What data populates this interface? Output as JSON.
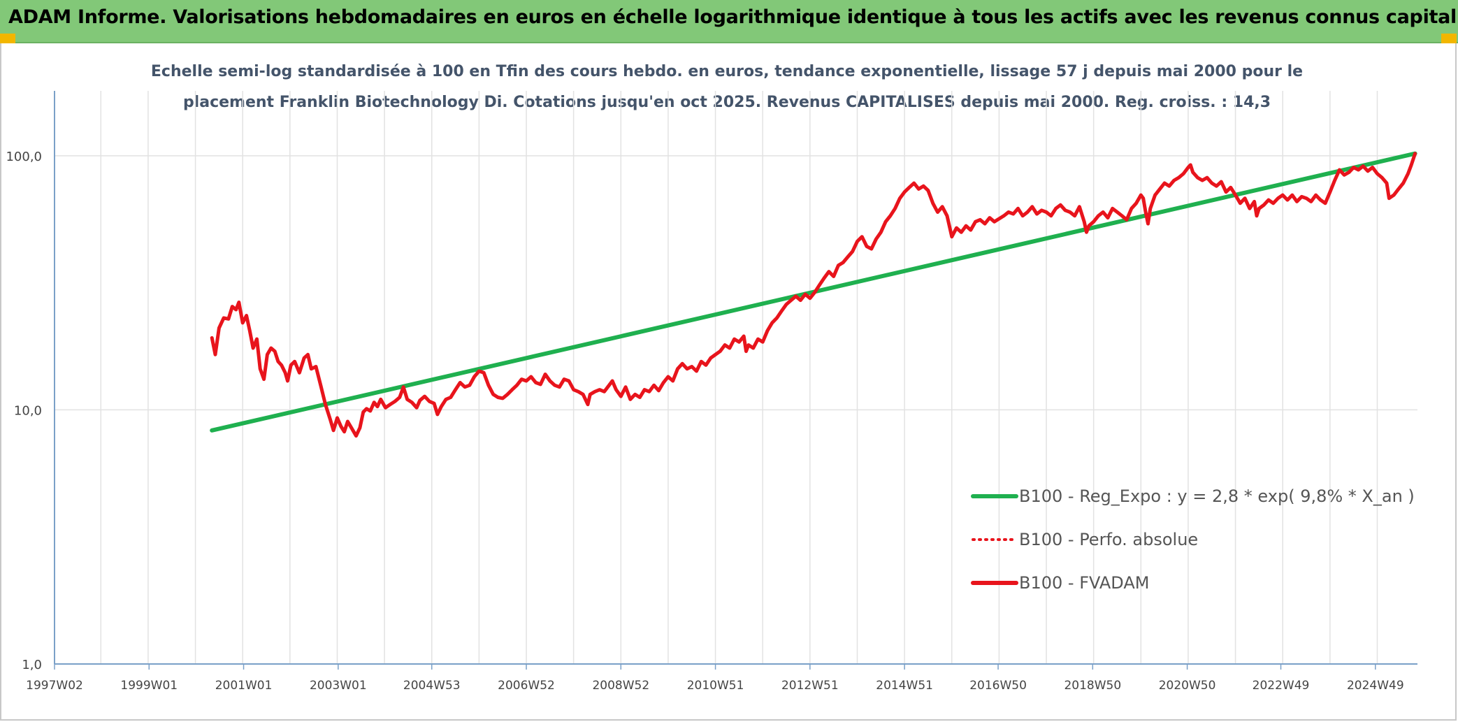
{
  "banner": {
    "title": "ADAM Informe. Valorisations hebdomadaires en euros en échelle logarithmique identique à tous les actifs avec les revenus connus capitalisés"
  },
  "colors": {
    "banner": "#82c878",
    "corner": "#f2b600",
    "green_line": "#1fb04f",
    "red_line": "#e8141c",
    "subtitle": "#44546a",
    "axis": "#7aa0c8",
    "grid": "#e2e2e2"
  },
  "chart_data": {
    "type": "line",
    "title_lines": [
      "Echelle semi-log standardisée à 100 en Tfin des cours hebdo. en euros, tendance exponentielle, lissage 57 j depuis mai 2000 pour le",
      "placement Franklin Biotechnology Di. Cotations jusqu'en oct 2025. Revenus CAPITALISES depuis mai 2000. Reg. croiss. : 14,3"
    ],
    "y_scale": "log",
    "ylim": [
      1,
      180
    ],
    "y_ticks": [
      {
        "value": 1,
        "label": "1,0"
      },
      {
        "value": 10,
        "label": "10,0"
      },
      {
        "value": 100,
        "label": "100,0"
      }
    ],
    "xlim": [
      1997.02,
      2025.85
    ],
    "x_ticks": [
      {
        "value": 1997.02,
        "label": "1997W02"
      },
      {
        "value": 1999.02,
        "label": "1999W01"
      },
      {
        "value": 2001.02,
        "label": "2001W01"
      },
      {
        "value": 2003.02,
        "label": "2003W01"
      },
      {
        "value": 2005.0,
        "label": "2004W53"
      },
      {
        "value": 2007.0,
        "label": "2006W52"
      },
      {
        "value": 2009.0,
        "label": "2008W52"
      },
      {
        "value": 2011.0,
        "label": "2010W51"
      },
      {
        "value": 2013.0,
        "label": "2012W51"
      },
      {
        "value": 2015.0,
        "label": "2014W51"
      },
      {
        "value": 2016.98,
        "label": "2016W50"
      },
      {
        "value": 2018.98,
        "label": "2018W50"
      },
      {
        "value": 2020.98,
        "label": "2020W50"
      },
      {
        "value": 2022.96,
        "label": "2022W49"
      },
      {
        "value": 2024.96,
        "label": "2024W49"
      }
    ],
    "x_grid_step_years": 1,
    "grid": true,
    "legend_position": "bottom-right",
    "series": [
      {
        "name": "B100 - Reg_Expo : y = 2,8 * exp( 9,8% *  X_an )",
        "style": "solid",
        "color": "#1fb04f",
        "points": [
          [
            2000.35,
            8.3
          ],
          [
            2025.8,
            102
          ]
        ]
      },
      {
        "name": "B100 - Perfo. absolue",
        "style": "dotted",
        "color": "#e8141c",
        "points": []
      },
      {
        "name": "B100 - FVADAM",
        "style": "solid",
        "color": "#e8141c",
        "points": [
          [
            2000.35,
            19.2
          ],
          [
            2000.42,
            16.5
          ],
          [
            2000.5,
            21.0
          ],
          [
            2000.6,
            23.0
          ],
          [
            2000.7,
            22.8
          ],
          [
            2000.78,
            25.5
          ],
          [
            2000.86,
            24.8
          ],
          [
            2000.92,
            26.5
          ],
          [
            2001.0,
            22.0
          ],
          [
            2001.08,
            23.5
          ],
          [
            2001.15,
            20.5
          ],
          [
            2001.22,
            17.5
          ],
          [
            2001.3,
            19.0
          ],
          [
            2001.37,
            14.5
          ],
          [
            2001.45,
            13.2
          ],
          [
            2001.52,
            16.5
          ],
          [
            2001.6,
            17.5
          ],
          [
            2001.68,
            17.0
          ],
          [
            2001.75,
            15.5
          ],
          [
            2001.82,
            15.0
          ],
          [
            2001.9,
            14.0
          ],
          [
            2001.95,
            13.0
          ],
          [
            2002.02,
            15.0
          ],
          [
            2002.1,
            15.5
          ],
          [
            2002.2,
            14.0
          ],
          [
            2002.3,
            16.0
          ],
          [
            2002.38,
            16.5
          ],
          [
            2002.45,
            14.5
          ],
          [
            2002.55,
            14.8
          ],
          [
            2002.65,
            12.5
          ],
          [
            2002.75,
            10.5
          ],
          [
            2002.85,
            9.2
          ],
          [
            2002.92,
            8.3
          ],
          [
            2003.0,
            9.3
          ],
          [
            2003.08,
            8.6
          ],
          [
            2003.15,
            8.2
          ],
          [
            2003.22,
            9.0
          ],
          [
            2003.3,
            8.5
          ],
          [
            2003.4,
            7.9
          ],
          [
            2003.48,
            8.5
          ],
          [
            2003.55,
            9.8
          ],
          [
            2003.62,
            10.1
          ],
          [
            2003.7,
            9.9
          ],
          [
            2003.78,
            10.7
          ],
          [
            2003.85,
            10.3
          ],
          [
            2003.92,
            11.0
          ],
          [
            2004.02,
            10.2
          ],
          [
            2004.12,
            10.5
          ],
          [
            2004.22,
            10.8
          ],
          [
            2004.32,
            11.2
          ],
          [
            2004.4,
            12.3
          ],
          [
            2004.48,
            11.0
          ],
          [
            2004.58,
            10.7
          ],
          [
            2004.68,
            10.2
          ],
          [
            2004.75,
            10.9
          ],
          [
            2004.85,
            11.3
          ],
          [
            2004.95,
            10.8
          ],
          [
            2005.05,
            10.6
          ],
          [
            2005.12,
            9.6
          ],
          [
            2005.2,
            10.3
          ],
          [
            2005.3,
            11.0
          ],
          [
            2005.4,
            11.2
          ],
          [
            2005.5,
            12.0
          ],
          [
            2005.6,
            12.8
          ],
          [
            2005.7,
            12.3
          ],
          [
            2005.8,
            12.5
          ],
          [
            2005.9,
            13.5
          ],
          [
            2006.0,
            14.2
          ],
          [
            2006.1,
            14.0
          ],
          [
            2006.2,
            12.5
          ],
          [
            2006.3,
            11.5
          ],
          [
            2006.4,
            11.2
          ],
          [
            2006.5,
            11.1
          ],
          [
            2006.6,
            11.5
          ],
          [
            2006.7,
            12.0
          ],
          [
            2006.8,
            12.5
          ],
          [
            2006.9,
            13.2
          ],
          [
            2007.0,
            13.0
          ],
          [
            2007.1,
            13.5
          ],
          [
            2007.2,
            12.8
          ],
          [
            2007.3,
            12.6
          ],
          [
            2007.4,
            13.8
          ],
          [
            2007.5,
            13.0
          ],
          [
            2007.6,
            12.5
          ],
          [
            2007.7,
            12.3
          ],
          [
            2007.8,
            13.2
          ],
          [
            2007.9,
            13.0
          ],
          [
            2008.0,
            12.0
          ],
          [
            2008.1,
            11.8
          ],
          [
            2008.2,
            11.5
          ],
          [
            2008.3,
            10.5
          ],
          [
            2008.35,
            11.5
          ],
          [
            2008.45,
            11.8
          ],
          [
            2008.55,
            12.0
          ],
          [
            2008.65,
            11.8
          ],
          [
            2008.75,
            12.5
          ],
          [
            2008.82,
            13.0
          ],
          [
            2008.9,
            12.0
          ],
          [
            2009.0,
            11.3
          ],
          [
            2009.1,
            12.3
          ],
          [
            2009.2,
            11.0
          ],
          [
            2009.3,
            11.5
          ],
          [
            2009.4,
            11.2
          ],
          [
            2009.5,
            12.0
          ],
          [
            2009.6,
            11.8
          ],
          [
            2009.7,
            12.5
          ],
          [
            2009.8,
            11.9
          ],
          [
            2009.9,
            12.8
          ],
          [
            2010.0,
            13.5
          ],
          [
            2010.1,
            13.0
          ],
          [
            2010.2,
            14.5
          ],
          [
            2010.3,
            15.2
          ],
          [
            2010.4,
            14.5
          ],
          [
            2010.5,
            14.8
          ],
          [
            2010.6,
            14.2
          ],
          [
            2010.7,
            15.5
          ],
          [
            2010.8,
            15.0
          ],
          [
            2010.9,
            16.0
          ],
          [
            2011.0,
            16.5
          ],
          [
            2011.1,
            17.0
          ],
          [
            2011.2,
            18.0
          ],
          [
            2011.3,
            17.5
          ],
          [
            2011.4,
            19.0
          ],
          [
            2011.5,
            18.5
          ],
          [
            2011.6,
            19.5
          ],
          [
            2011.65,
            17.0
          ],
          [
            2011.7,
            18.0
          ],
          [
            2011.8,
            17.5
          ],
          [
            2011.9,
            19.0
          ],
          [
            2012.0,
            18.5
          ],
          [
            2012.1,
            20.5
          ],
          [
            2012.2,
            22.0
          ],
          [
            2012.3,
            23.0
          ],
          [
            2012.4,
            24.5
          ],
          [
            2012.5,
            26.0
          ],
          [
            2012.6,
            27.0
          ],
          [
            2012.7,
            28.0
          ],
          [
            2012.8,
            27.0
          ],
          [
            2012.9,
            28.5
          ],
          [
            2013.0,
            27.5
          ],
          [
            2013.1,
            29.0
          ],
          [
            2013.2,
            31.0
          ],
          [
            2013.3,
            33.0
          ],
          [
            2013.4,
            35.0
          ],
          [
            2013.5,
            33.5
          ],
          [
            2013.6,
            37.0
          ],
          [
            2013.7,
            38.0
          ],
          [
            2013.8,
            40.0
          ],
          [
            2013.9,
            42.0
          ],
          [
            2014.0,
            46.0
          ],
          [
            2014.1,
            48.0
          ],
          [
            2014.2,
            44.0
          ],
          [
            2014.3,
            43.0
          ],
          [
            2014.4,
            47.0
          ],
          [
            2014.5,
            50.0
          ],
          [
            2014.6,
            55.0
          ],
          [
            2014.7,
            58.0
          ],
          [
            2014.8,
            62.0
          ],
          [
            2014.9,
            68.0
          ],
          [
            2015.0,
            72.0
          ],
          [
            2015.1,
            75.0
          ],
          [
            2015.2,
            78.0
          ],
          [
            2015.3,
            74.0
          ],
          [
            2015.4,
            76.0
          ],
          [
            2015.5,
            73.0
          ],
          [
            2015.6,
            65.0
          ],
          [
            2015.7,
            60.0
          ],
          [
            2015.8,
            63.0
          ],
          [
            2015.9,
            58.0
          ],
          [
            2016.0,
            48.0
          ],
          [
            2016.1,
            52.0
          ],
          [
            2016.2,
            50.0
          ],
          [
            2016.3,
            53.0
          ],
          [
            2016.4,
            51.0
          ],
          [
            2016.5,
            55.0
          ],
          [
            2016.6,
            56.0
          ],
          [
            2016.7,
            54.0
          ],
          [
            2016.8,
            57.0
          ],
          [
            2016.9,
            55.0
          ],
          [
            2017.0,
            56.5
          ],
          [
            2017.1,
            58.0
          ],
          [
            2017.2,
            60.0
          ],
          [
            2017.3,
            59.0
          ],
          [
            2017.4,
            62.0
          ],
          [
            2017.5,
            58.0
          ],
          [
            2017.6,
            60.0
          ],
          [
            2017.7,
            63.0
          ],
          [
            2017.8,
            59.0
          ],
          [
            2017.9,
            61.0
          ],
          [
            2018.0,
            60.0
          ],
          [
            2018.1,
            58.0
          ],
          [
            2018.2,
            62.0
          ],
          [
            2018.3,
            64.0
          ],
          [
            2018.4,
            61.0
          ],
          [
            2018.5,
            60.0
          ],
          [
            2018.6,
            58.0
          ],
          [
            2018.7,
            63.0
          ],
          [
            2018.8,
            55.0
          ],
          [
            2018.85,
            50.0
          ],
          [
            2018.9,
            53.0
          ],
          [
            2019.0,
            55.0
          ],
          [
            2019.1,
            58.0
          ],
          [
            2019.2,
            60.0
          ],
          [
            2019.3,
            57.0
          ],
          [
            2019.4,
            62.0
          ],
          [
            2019.5,
            60.0
          ],
          [
            2019.6,
            58.0
          ],
          [
            2019.7,
            56.0
          ],
          [
            2019.8,
            62.0
          ],
          [
            2019.9,
            65.0
          ],
          [
            2020.0,
            70.0
          ],
          [
            2020.05,
            68.0
          ],
          [
            2020.1,
            60.0
          ],
          [
            2020.15,
            54.0
          ],
          [
            2020.2,
            62.0
          ],
          [
            2020.3,
            70.0
          ],
          [
            2020.4,
            74.0
          ],
          [
            2020.5,
            78.0
          ],
          [
            2020.6,
            76.0
          ],
          [
            2020.7,
            80.0
          ],
          [
            2020.8,
            82.0
          ],
          [
            2020.9,
            85.0
          ],
          [
            2021.0,
            90.0
          ],
          [
            2021.05,
            92.0
          ],
          [
            2021.1,
            86.0
          ],
          [
            2021.2,
            82.0
          ],
          [
            2021.3,
            80.0
          ],
          [
            2021.4,
            82.0
          ],
          [
            2021.5,
            78.0
          ],
          [
            2021.6,
            76.0
          ],
          [
            2021.7,
            79.0
          ],
          [
            2021.8,
            72.0
          ],
          [
            2021.9,
            75.0
          ],
          [
            2022.0,
            70.0
          ],
          [
            2022.1,
            65.0
          ],
          [
            2022.2,
            68.0
          ],
          [
            2022.3,
            62.0
          ],
          [
            2022.4,
            66.0
          ],
          [
            2022.45,
            58.0
          ],
          [
            2022.5,
            62.0
          ],
          [
            2022.6,
            64.0
          ],
          [
            2022.7,
            67.0
          ],
          [
            2022.8,
            65.0
          ],
          [
            2022.9,
            68.0
          ],
          [
            2023.0,
            70.0
          ],
          [
            2023.1,
            67.0
          ],
          [
            2023.2,
            70.0
          ],
          [
            2023.3,
            66.0
          ],
          [
            2023.4,
            69.0
          ],
          [
            2023.5,
            68.0
          ],
          [
            2023.6,
            66.0
          ],
          [
            2023.7,
            70.0
          ],
          [
            2023.8,
            67.0
          ],
          [
            2023.9,
            65.0
          ],
          [
            2024.0,
            72.0
          ],
          [
            2024.1,
            80.0
          ],
          [
            2024.2,
            88.0
          ],
          [
            2024.3,
            84.0
          ],
          [
            2024.4,
            86.0
          ],
          [
            2024.5,
            90.0
          ],
          [
            2024.6,
            88.0
          ],
          [
            2024.7,
            91.0
          ],
          [
            2024.8,
            87.0
          ],
          [
            2024.9,
            90.0
          ],
          [
            2025.0,
            85.0
          ],
          [
            2025.1,
            82.0
          ],
          [
            2025.2,
            78.0
          ],
          [
            2025.25,
            68.0
          ],
          [
            2025.35,
            70.0
          ],
          [
            2025.45,
            74.0
          ],
          [
            2025.55,
            78.0
          ],
          [
            2025.65,
            85.0
          ],
          [
            2025.72,
            92.0
          ],
          [
            2025.8,
            102.0
          ]
        ]
      }
    ]
  }
}
